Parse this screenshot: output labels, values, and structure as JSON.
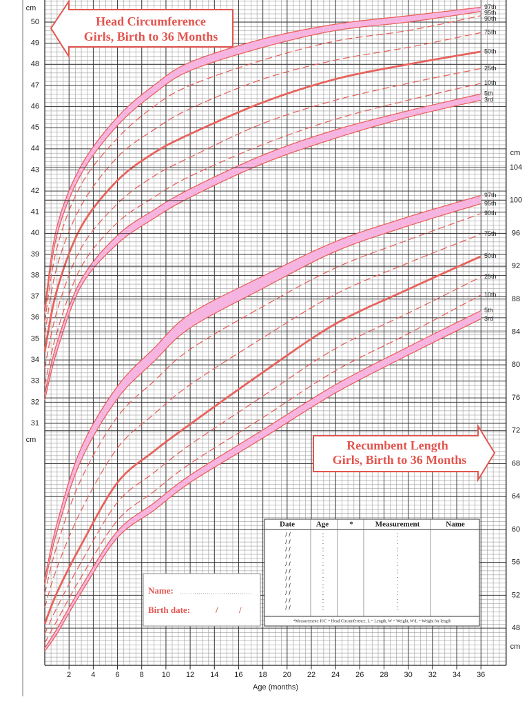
{
  "chart_data": [
    {
      "type": "line",
      "title": "Head Circumference",
      "subtitle": "Girls, Birth to 36 Months",
      "xlabel": "Age (months)",
      "ylabel": "cm",
      "axis_side": "left",
      "color": "#e8625c",
      "band_color": "#f6b5e0",
      "x": [
        0,
        1,
        3,
        6,
        9,
        12,
        18,
        24,
        30,
        36
      ],
      "xlim": [
        0,
        36
      ],
      "xticks": [
        2,
        4,
        6,
        8,
        10,
        12,
        14,
        16,
        18,
        20,
        22,
        24,
        26,
        28,
        30,
        32,
        34,
        36
      ],
      "ylim": [
        30.5,
        51
      ],
      "yticks": [
        31,
        32,
        33,
        34,
        35,
        36,
        37,
        38,
        39,
        40,
        41,
        42,
        43,
        44,
        45,
        46,
        47,
        48,
        49,
        50
      ],
      "series": [
        {
          "name": "3rd",
          "line_style": "solid",
          "values": [
            32.1,
            34.4,
            37.5,
            39.5,
            40.7,
            41.7,
            43.3,
            44.5,
            45.5,
            46.3
          ]
        },
        {
          "name": "5th",
          "line_style": "solid",
          "values": [
            32.4,
            34.8,
            37.8,
            39.9,
            41.1,
            42.1,
            43.7,
            44.9,
            45.8,
            46.6
          ]
        },
        {
          "name": "10th",
          "line_style": "dashed",
          "values": [
            32.8,
            35.3,
            38.4,
            40.5,
            41.7,
            42.7,
            44.2,
            45.4,
            46.3,
            47.1
          ]
        },
        {
          "name": "25th",
          "line_style": "dashed",
          "values": [
            33.6,
            36.3,
            39.3,
            41.4,
            42.7,
            43.6,
            45.2,
            46.3,
            47.1,
            47.8
          ]
        },
        {
          "name": "50th",
          "line_style": "bold",
          "values": [
            34.4,
            37.3,
            40.3,
            42.5,
            43.8,
            44.7,
            46.2,
            47.3,
            48.0,
            48.6
          ]
        },
        {
          "name": "75th",
          "line_style": "dashed",
          "values": [
            35.2,
            38.4,
            41.3,
            43.6,
            44.9,
            45.9,
            47.3,
            48.2,
            48.8,
            49.5
          ]
        },
        {
          "name": "90th",
          "line_style": "dashed",
          "values": [
            35.8,
            39.3,
            42.3,
            44.5,
            46.0,
            47.0,
            48.2,
            49.1,
            49.6,
            50.3
          ]
        },
        {
          "name": "95th",
          "line_style": "solid",
          "values": [
            36.2,
            39.9,
            42.8,
            45.1,
            46.6,
            47.7,
            48.8,
            49.6,
            50.0,
            50.5
          ]
        },
        {
          "name": "97th",
          "line_style": "solid",
          "values": [
            36.5,
            40.3,
            43.2,
            45.5,
            47.0,
            48.1,
            49.2,
            49.9,
            50.3,
            50.7
          ]
        }
      ]
    },
    {
      "type": "line",
      "title": "Recumbent Length",
      "subtitle": "Girls, Birth to 36 Months",
      "ylabel": "cm",
      "axis_side": "right",
      "color": "#e8625c",
      "band_color": "#f6b5e0",
      "x": [
        0,
        1,
        3,
        6,
        9,
        12,
        18,
        24,
        30,
        36
      ],
      "xlim": [
        0,
        36
      ],
      "ylim": [
        44,
        106
      ],
      "yticks": [
        48,
        52,
        56,
        60,
        64,
        68,
        72,
        76,
        80,
        84,
        88,
        92,
        96,
        100,
        104
      ],
      "series": [
        {
          "name": "3rd",
          "line_style": "solid",
          "values": [
            45.2,
            47.3,
            52.3,
            59.0,
            62.3,
            65.7,
            71.1,
            76.6,
            81.2,
            85.6
          ]
        },
        {
          "name": "5th",
          "line_style": "solid",
          "values": [
            45.6,
            47.9,
            53.0,
            59.8,
            63.2,
            66.6,
            72.1,
            77.6,
            82.2,
            86.6
          ]
        },
        {
          "name": "10th",
          "line_style": "dashed",
          "values": [
            46.2,
            48.9,
            54.2,
            61.1,
            64.6,
            68.0,
            73.6,
            79.3,
            83.8,
            88.5
          ]
        },
        {
          "name": "25th",
          "line_style": "dashed",
          "values": [
            47.3,
            50.5,
            56.0,
            63.3,
            66.9,
            70.3,
            76.2,
            82.0,
            86.3,
            90.7
          ]
        },
        {
          "name": "50th",
          "line_style": "bold",
          "values": [
            48.5,
            52.3,
            58.1,
            65.7,
            69.5,
            72.8,
            79.1,
            85.0,
            89.2,
            93.2
          ]
        },
        {
          "name": "75th",
          "line_style": "dashed",
          "values": [
            50.5,
            55.3,
            62.3,
            69.9,
            74.0,
            77.6,
            83.3,
            88.6,
            92.4,
            95.9
          ]
        },
        {
          "name": "90th",
          "line_style": "dashed",
          "values": [
            52.2,
            58.0,
            66.1,
            73.7,
            78.0,
            81.9,
            87.1,
            91.8,
            95.2,
            98.4
          ]
        },
        {
          "name": "95th",
          "line_style": "solid",
          "values": [
            53.3,
            59.7,
            68.4,
            75.9,
            80.4,
            84.5,
            89.3,
            93.8,
            96.9,
            99.6
          ]
        },
        {
          "name": "97th",
          "line_style": "solid",
          "values": [
            54.0,
            60.7,
            69.9,
            77.4,
            82.0,
            86.2,
            90.8,
            95.0,
            98.0,
            100.6
          ]
        }
      ]
    }
  ],
  "form": {
    "name_label": "Name:",
    "birth_date_label": "Birth date:",
    "birth_date_separators": [
      "/",
      "/"
    ],
    "record_table": {
      "headers": [
        "Date",
        "Age",
        "*",
        "Measurement",
        "Name"
      ],
      "rows": [
        [
          "/   /",
          ":",
          ":"
        ],
        [
          "/   /",
          ":",
          ":"
        ],
        [
          "/   /",
          ":",
          ":"
        ],
        [
          "/   /",
          ":",
          ":"
        ],
        [
          "/   /",
          ":",
          ":"
        ],
        [
          "/   /",
          ":",
          ":"
        ],
        [
          "/   /",
          ":",
          ":"
        ],
        [
          "/   /",
          ":",
          ":"
        ],
        [
          "/   /",
          ":",
          ":"
        ],
        [
          "/   /",
          ":",
          ":"
        ],
        [
          "/   /",
          ":",
          ":"
        ]
      ],
      "footnote": "*Measurement: H/C = Head Circumference, L = Length, W = Weight, W/L = Weight for length"
    }
  }
}
